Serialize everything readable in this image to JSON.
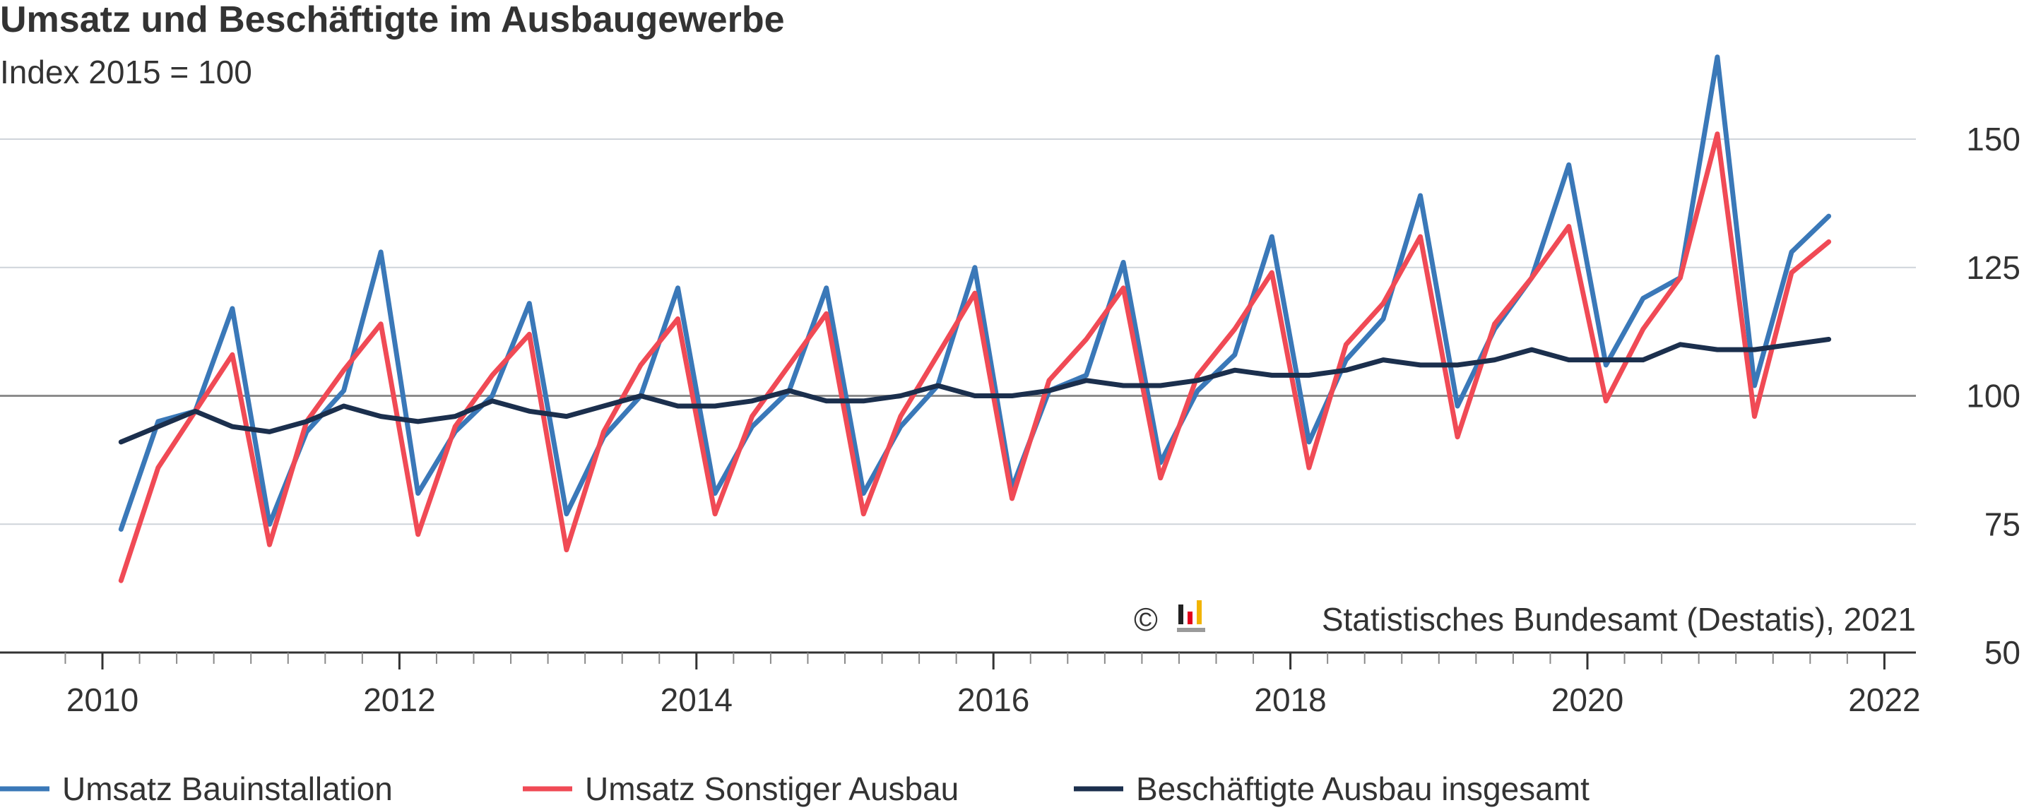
{
  "chart_data": {
    "type": "line",
    "title": "Umsatz und Beschäftigte im Ausbaugewerbe",
    "subtitle": "Index 2015 = 100",
    "source": "Statistisches Bundesamt (Destatis), 2021",
    "copyright_symbol": "©",
    "ylim": [
      50,
      170
    ],
    "y_ticks": [
      {
        "value": 50,
        "label": "50"
      },
      {
        "value": 75,
        "label": "75"
      },
      {
        "value": 100,
        "label": "100"
      },
      {
        "value": 125,
        "label": "125"
      },
      {
        "value": 150,
        "label": "150"
      }
    ],
    "xlim": [
      2009.55,
      2022.1
    ],
    "x_ticks": [
      {
        "value": 2010,
        "label": "2010"
      },
      {
        "value": 2012,
        "label": "2012"
      },
      {
        "value": 2014,
        "label": "2014"
      },
      {
        "value": 2016,
        "label": "2016"
      },
      {
        "value": 2018,
        "label": "2018"
      },
      {
        "value": 2020,
        "label": "2020"
      },
      {
        "value": 2022,
        "label": "2022"
      }
    ],
    "grid": true,
    "legend_position": "bottom",
    "x": [
      "2010-Q1",
      "2010-Q2",
      "2010-Q3",
      "2010-Q4",
      "2011-Q1",
      "2011-Q2",
      "2011-Q3",
      "2011-Q4",
      "2012-Q1",
      "2012-Q2",
      "2012-Q3",
      "2012-Q4",
      "2013-Q1",
      "2013-Q2",
      "2013-Q3",
      "2013-Q4",
      "2014-Q1",
      "2014-Q2",
      "2014-Q3",
      "2014-Q4",
      "2015-Q1",
      "2015-Q2",
      "2015-Q3",
      "2015-Q4",
      "2016-Q1",
      "2016-Q2",
      "2016-Q3",
      "2016-Q4",
      "2017-Q1",
      "2017-Q2",
      "2017-Q3",
      "2017-Q4",
      "2018-Q1",
      "2018-Q2",
      "2018-Q3",
      "2018-Q4",
      "2019-Q1",
      "2019-Q2",
      "2019-Q3",
      "2019-Q4",
      "2020-Q1",
      "2020-Q2",
      "2020-Q3",
      "2020-Q4",
      "2021-Q1",
      "2021-Q2",
      "2021-Q3"
    ],
    "series": [
      {
        "name": "Umsatz Bauinstallation",
        "color": "#3a78b8",
        "values": [
          74,
          95,
          97,
          117,
          75,
          93,
          101,
          128,
          81,
          93,
          100,
          118,
          77,
          92,
          100,
          121,
          81,
          94,
          101,
          121,
          81,
          94,
          102,
          125,
          82,
          101,
          104,
          126,
          87,
          101,
          108,
          131,
          91,
          107,
          115,
          139,
          98,
          113,
          123,
          145,
          106,
          119,
          123,
          166,
          102,
          128,
          135
        ]
      },
      {
        "name": "Umsatz Sonstiger Ausbau",
        "color": "#f04a55",
        "values": [
          64,
          86,
          97,
          108,
          71,
          95,
          105,
          114,
          73,
          94,
          104,
          112,
          70,
          93,
          106,
          115,
          77,
          96,
          106,
          116,
          77,
          96,
          108,
          120,
          80,
          103,
          111,
          121,
          84,
          104,
          113,
          124,
          86,
          110,
          118,
          131,
          92,
          114,
          123,
          133,
          99,
          113,
          123,
          151,
          96,
          124,
          130
        ]
      },
      {
        "name": "Beschäftigte Ausbau insgesamt",
        "color": "#1b2f4d",
        "values": [
          91,
          94,
          97,
          94,
          93,
          95,
          98,
          96,
          95,
          96,
          99,
          97,
          96,
          98,
          100,
          98,
          98,
          99,
          101,
          99,
          99,
          100,
          102,
          100,
          100,
          101,
          103,
          102,
          102,
          103,
          105,
          104,
          104,
          105,
          107,
          106,
          106,
          107,
          109,
          107,
          107,
          107,
          110,
          109,
          109,
          110,
          111
        ]
      }
    ]
  }
}
